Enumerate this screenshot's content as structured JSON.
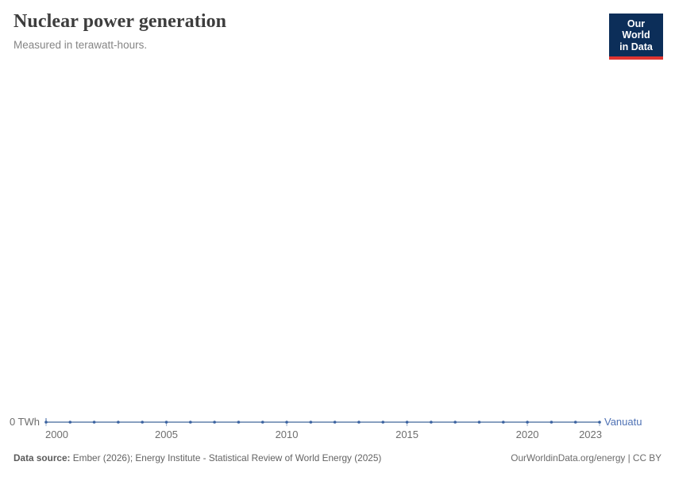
{
  "header": {
    "title": "Nuclear power generation",
    "subtitle": "Measured in terawatt-hours.",
    "logo_line1": "Our World",
    "logo_line2": "in Data"
  },
  "chart_data": {
    "type": "line",
    "title": "Nuclear power generation",
    "subtitle": "Measured in terawatt-hours.",
    "unit": "TWh",
    "x": [
      2000,
      2001,
      2002,
      2003,
      2004,
      2005,
      2006,
      2007,
      2008,
      2009,
      2010,
      2011,
      2012,
      2013,
      2014,
      2015,
      2016,
      2017,
      2018,
      2019,
      2020,
      2021,
      2022,
      2023
    ],
    "series": [
      {
        "name": "Vanuatu",
        "values": [
          0,
          0,
          0,
          0,
          0,
          0,
          0,
          0,
          0,
          0,
          0,
          0,
          0,
          0,
          0,
          0,
          0,
          0,
          0,
          0,
          0,
          0,
          0,
          0
        ]
      }
    ],
    "x_ticks": [
      2000,
      2005,
      2010,
      2015,
      2020,
      2023
    ],
    "x_tick_labels": [
      "2000",
      "2005",
      "2010",
      "2015",
      "2020",
      "2023"
    ],
    "y_zero_label": "0 TWh",
    "xlim": [
      2000,
      2023
    ],
    "ylim": [
      0,
      0
    ],
    "grid": false,
    "legend_position": "end-of-line",
    "marker": "dot-every-year"
  },
  "chart": {
    "entity_label": "Vanuatu",
    "colors": {
      "line": "#6180ac",
      "marker": "#3a62a0",
      "tick": "#9db0cc",
      "entity_label": "#4e71b4",
      "axis_text": "#6e6e6e"
    }
  },
  "footer": {
    "source_label": "Data source:",
    "source_text": " Ember (2026); Energy Institute - Statistical Review of World Energy (2025)",
    "credit": "OurWorldinData.org/energy | CC BY"
  }
}
